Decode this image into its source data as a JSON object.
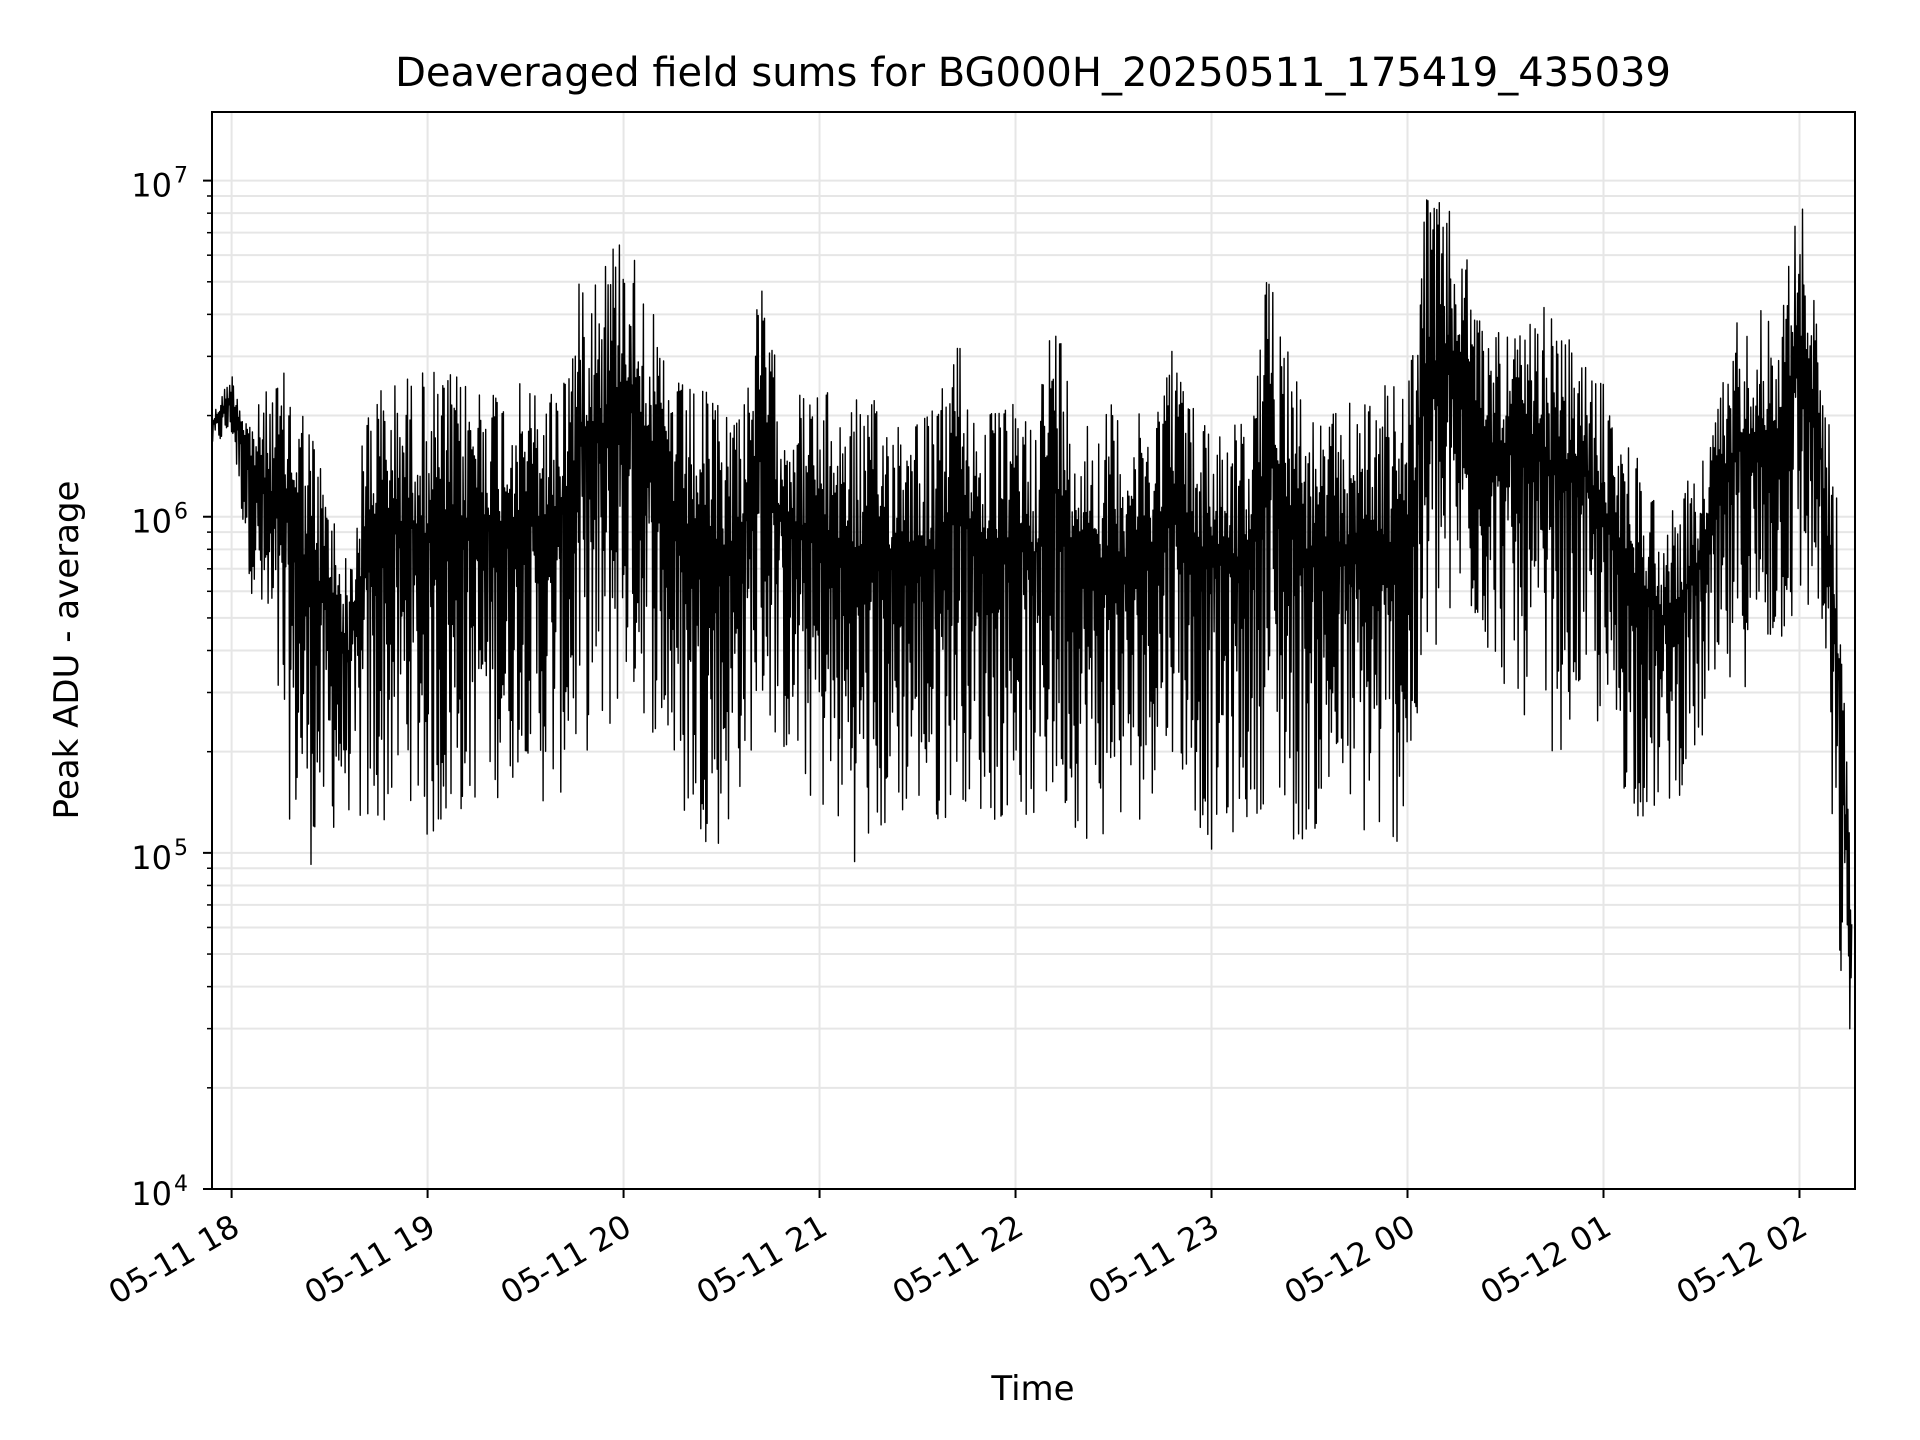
{
  "chart_data": {
    "type": "line",
    "title": "Deaveraged field sums for BG000H_20250511_175419_435039",
    "xlabel": "Time",
    "ylabel": "Peak ADU - average",
    "yscale": "log",
    "ylim": [
      10000,
      16000000
    ],
    "xlim": [
      "2025-05-11 17:54",
      "2025-05-12 02:17"
    ],
    "grid": true,
    "legend": "none",
    "line_color": "#000000",
    "x_ticks": [
      "05-11 18",
      "05-11 19",
      "05-11 20",
      "05-11 21",
      "05-11 22",
      "05-11 23",
      "05-12 00",
      "05-12 01",
      "05-12 02"
    ],
    "y_ticks": [
      {
        "base": "10",
        "exp": "4",
        "value": 10000
      },
      {
        "base": "10",
        "exp": "5",
        "value": 100000
      },
      {
        "base": "10",
        "exp": "6",
        "value": 1000000
      },
      {
        "base": "10",
        "exp": "7",
        "value": 10000000
      }
    ],
    "series": [
      {
        "x": [
          "2025-05-11 17:54",
          "2025-05-11 18:00",
          "2025-05-11 18:06",
          "2025-05-11 18:12",
          "2025-05-11 18:18",
          "2025-05-11 18:24",
          "2025-05-11 18:30",
          "2025-05-11 18:36",
          "2025-05-11 18:42",
          "2025-05-11 18:48",
          "2025-05-11 18:54",
          "2025-05-11 19:00",
          "2025-05-11 19:06",
          "2025-05-11 19:12",
          "2025-05-11 19:18",
          "2025-05-11 19:24",
          "2025-05-11 19:30",
          "2025-05-11 19:36",
          "2025-05-11 19:42",
          "2025-05-11 19:48",
          "2025-05-11 19:54",
          "2025-05-11 20:00",
          "2025-05-11 20:06",
          "2025-05-11 20:12",
          "2025-05-11 20:18",
          "2025-05-11 20:24",
          "2025-05-11 20:30",
          "2025-05-11 20:36",
          "2025-05-11 20:42",
          "2025-05-11 20:48",
          "2025-05-11 20:54",
          "2025-05-11 21:00",
          "2025-05-11 21:06",
          "2025-05-11 21:12",
          "2025-05-11 21:18",
          "2025-05-11 21:24",
          "2025-05-11 21:30",
          "2025-05-11 21:36",
          "2025-05-11 21:42",
          "2025-05-11 21:48",
          "2025-05-11 21:54",
          "2025-05-11 22:00",
          "2025-05-11 22:06",
          "2025-05-11 22:12",
          "2025-05-11 22:18",
          "2025-05-11 22:24",
          "2025-05-11 22:30",
          "2025-05-11 22:36",
          "2025-05-11 22:42",
          "2025-05-11 22:48",
          "2025-05-11 22:54",
          "2025-05-11 23:00",
          "2025-05-11 23:06",
          "2025-05-11 23:12",
          "2025-05-11 23:18",
          "2025-05-11 23:24",
          "2025-05-11 23:30",
          "2025-05-11 23:36",
          "2025-05-11 23:42",
          "2025-05-11 23:48",
          "2025-05-11 23:54",
          "2025-05-12 00:00",
          "2025-05-12 00:06",
          "2025-05-12 00:12",
          "2025-05-12 00:18",
          "2025-05-12 00:24",
          "2025-05-12 00:30",
          "2025-05-12 00:36",
          "2025-05-12 00:42",
          "2025-05-12 00:48",
          "2025-05-12 00:54",
          "2025-05-12 01:00",
          "2025-05-12 01:06",
          "2025-05-12 01:12",
          "2025-05-12 01:18",
          "2025-05-12 01:24",
          "2025-05-12 01:30",
          "2025-05-12 01:36",
          "2025-05-12 01:42",
          "2025-05-12 01:48",
          "2025-05-12 01:54",
          "2025-05-12 02:00",
          "2025-05-12 02:06",
          "2025-05-12 02:12",
          "2025-05-12 02:16"
        ],
        "low": [
          1600000,
          1700000,
          600000,
          300000,
          120000,
          90000,
          110000,
          130000,
          100000,
          120000,
          150000,
          100000,
          110000,
          130000,
          150000,
          140000,
          200000,
          130000,
          150000,
          200000,
          180000,
          300000,
          250000,
          200000,
          120000,
          110000,
          100000,
          150000,
          250000,
          200000,
          150000,
          130000,
          110000,
          90000,
          100000,
          120000,
          130000,
          110000,
          150000,
          130000,
          120000,
          140000,
          110000,
          130000,
          120000,
          100000,
          120000,
          110000,
          150000,
          200000,
          130000,
          100000,
          110000,
          120000,
          150000,
          100000,
          110000,
          120000,
          130000,
          100000,
          100000,
          110000,
          300000,
          400000,
          500000,
          400000,
          300000,
          250000,
          200000,
          200000,
          300000,
          200000,
          150000,
          120000,
          130000,
          150000,
          200000,
          250000,
          300000,
          350000,
          400000,
          450000,
          500000,
          40000,
          25000
        ],
        "high": [
          2000000,
          2700000,
          2000000,
          2500000,
          2800000,
          2000000,
          1200000,
          700000,
          2600000,
          2500000,
          2700000,
          2800000,
          2700000,
          2600000,
          2700000,
          2500000,
          2500000,
          2400000,
          3000000,
          6000000,
          6500000,
          7500000,
          5500000,
          3000000,
          2500000,
          2400000,
          2300000,
          2300000,
          5000000,
          2500000,
          2400000,
          2400000,
          2300000,
          2300000,
          2200000,
          2200000,
          2200000,
          2100000,
          3800000,
          2100000,
          2100000,
          2200000,
          2200000,
          4500000,
          2200000,
          2100000,
          2200000,
          2000000,
          2100000,
          3500000,
          2200000,
          2100000,
          2000000,
          2000000,
          6500000,
          3500000,
          2000000,
          2000000,
          2200000,
          2500000,
          2500000,
          2500000,
          9500000,
          8500000,
          6000000,
          3500000,
          4000000,
          3500000,
          4500000,
          3500000,
          3000000,
          2500000,
          1800000,
          1500000,
          1000000,
          1200000,
          1500000,
          2500000,
          4500000,
          4200000,
          4000000,
          10000000,
          3500000,
          1100000,
          70000
        ]
      }
    ]
  }
}
